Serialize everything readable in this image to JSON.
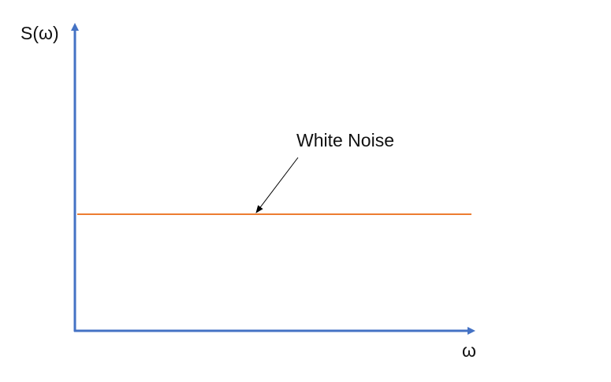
{
  "axes": {
    "y_label": "S(ω)",
    "x_label": "ω",
    "color": "#4472C4"
  },
  "noise": {
    "label": "White Noise",
    "line_color": "#ED7D31",
    "annotation_color": "#000000"
  }
}
